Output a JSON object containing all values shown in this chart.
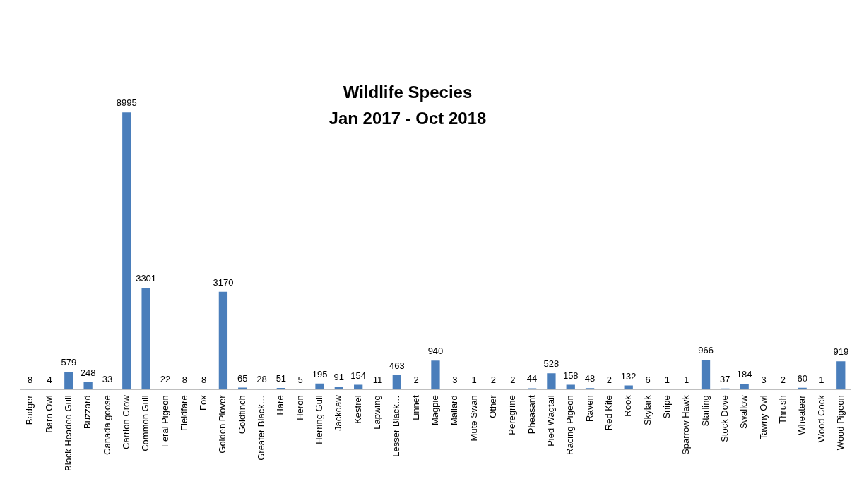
{
  "chart_data": {
    "type": "bar",
    "title": "Wildlife Species",
    "subtitle": "Jan 2017 - Oct 2018",
    "categories": [
      "Badger",
      "Barn Owl",
      "Black Headed Gull",
      "Buzzard",
      "Canada goose",
      "Carrion Crow",
      "Common Gull",
      "Feral Pigeon",
      "Fieldfare",
      "Fox",
      "Golden Plover",
      "Goldfinch",
      "Greater Black…",
      "Hare",
      "Heron",
      "Herring Gull",
      "Jackdaw",
      "Kestrel",
      "Lapwing",
      "Lesser Black…",
      "Linnet",
      "Magpie",
      "Mallard",
      "Mute Swan",
      "Other",
      "Peregrine",
      "Pheasant",
      "Pied Wagtail",
      "Racing Pigeon",
      "Raven",
      "Red Kite",
      "Rook",
      "Skylark",
      "Snipe",
      "Sparrow Hawk",
      "Starling",
      "Stock Dove",
      "Swallow",
      "Tawny Owl",
      "Thrush",
      "Wheatear",
      "Wood Cock",
      "Wood Pigeon"
    ],
    "values": [
      8,
      4,
      579,
      248,
      33,
      8995,
      3301,
      22,
      8,
      8,
      3170,
      65,
      28,
      51,
      5,
      195,
      91,
      154,
      11,
      463,
      2,
      940,
      3,
      1,
      2,
      2,
      44,
      528,
      158,
      48,
      2,
      132,
      6,
      1,
      1,
      966,
      37,
      184,
      3,
      2,
      60,
      1,
      919
    ],
    "color": "#4a7ebb",
    "data_labels": true,
    "grid": false,
    "legend": false
  }
}
